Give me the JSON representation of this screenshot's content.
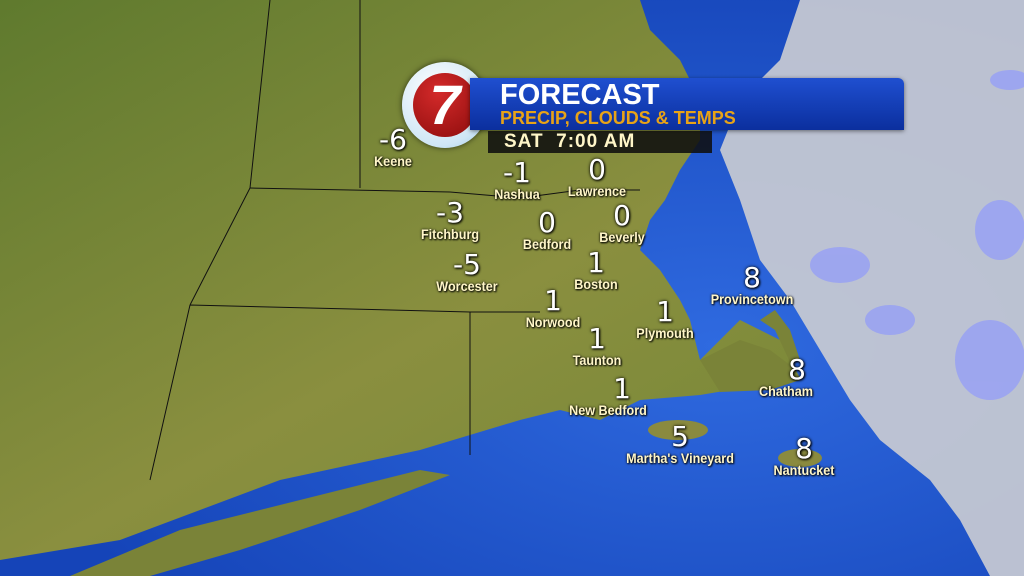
{
  "header": {
    "logo_text": "7",
    "title": "FORECAST",
    "subtitle": "PRECIP, CLOUDS & TEMPS",
    "time": "SAT  7:00 AM"
  },
  "colors": {
    "banner": "#1a45c4",
    "subtitle": "#e8a317",
    "ocean": "#1f55d4",
    "land": "#7a8c3c",
    "cloud": "#c9cbd3",
    "precip": "#8f9af0"
  },
  "cities": [
    {
      "name": "Keene",
      "temp": "-6"
    },
    {
      "name": "Nashua",
      "temp": "-1"
    },
    {
      "name": "Lawrence",
      "temp": "0"
    },
    {
      "name": "Fitchburg",
      "temp": "-3"
    },
    {
      "name": "Bedford",
      "temp": "0"
    },
    {
      "name": "Beverly",
      "temp": "0"
    },
    {
      "name": "Worcester",
      "temp": "-5"
    },
    {
      "name": "Boston",
      "temp": "1"
    },
    {
      "name": "Norwood",
      "temp": "1"
    },
    {
      "name": "Plymouth",
      "temp": "1"
    },
    {
      "name": "Taunton",
      "temp": "1"
    },
    {
      "name": "New Bedford",
      "temp": "1"
    },
    {
      "name": "Provincetown",
      "temp": "8"
    },
    {
      "name": "Chatham",
      "temp": "8"
    },
    {
      "name": "Martha's Vineyard",
      "temp": "5"
    },
    {
      "name": "Nantucket",
      "temp": "8"
    }
  ]
}
